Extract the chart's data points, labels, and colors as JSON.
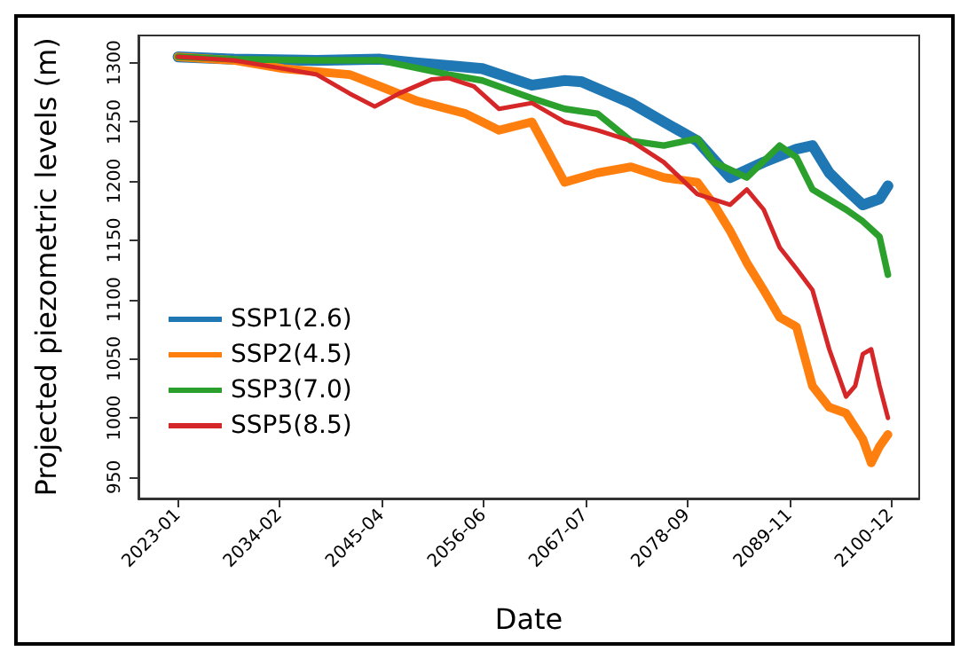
{
  "chart_data": {
    "type": "line",
    "xlabel": "Date",
    "ylabel": "Projected piezometric levels (m)",
    "xlim": [
      "2018-09",
      "2104-01"
    ],
    "xticks": [
      "2023-01",
      "2034-02",
      "2045-04",
      "2056-06",
      "2067-07",
      "2078-09",
      "2089-11",
      "2100-12"
    ],
    "ylim": [
      932,
      1323
    ],
    "yticks": [
      950,
      1000,
      1050,
      1100,
      1150,
      1200,
      1250,
      1300
    ],
    "grid": false,
    "legend": "bottom left",
    "marker": "none",
    "line_style": "solid",
    "series": [
      {
        "name": "SSP1(2.6)",
        "color": "#1f77b4",
        "x": [
          "2023-01",
          "2029-02",
          "2038-03",
          "2045-02",
          "2049-01",
          "2056-04",
          "2061-09",
          "2065-04",
          "2067-02",
          "2072-07",
          "2076-02",
          "2079-10",
          "2083-05",
          "2087-01",
          "2090-08",
          "2092-05",
          "2094-03",
          "2096-01",
          "2097-11",
          "2099-09",
          "2100-08"
        ],
        "values": [
          1305,
          1303,
          1302,
          1303,
          1300,
          1295,
          1281,
          1285,
          1284,
          1266,
          1250,
          1234,
          1203,
          1216,
          1227,
          1230,
          1207,
          1193,
          1180,
          1185,
          1196
        ]
      },
      {
        "name": "SSP2(4.5)",
        "color": "#ff7f0e",
        "x": [
          "2023-01",
          "2029-02",
          "2034-07",
          "2041-10",
          "2045-02",
          "2049-01",
          "2054-06",
          "2058-02",
          "2061-09",
          "2065-04",
          "2068-11",
          "2072-07",
          "2076-02",
          "2079-10",
          "2081-08",
          "2083-05",
          "2085-03",
          "2087-01",
          "2088-10",
          "2090-08",
          "2092-05",
          "2094-03",
          "2096-01",
          "2097-11",
          "2098-10",
          "2099-09",
          "2100-08"
        ],
        "values": [
          1305,
          1302,
          1295,
          1290,
          1280,
          1268,
          1257,
          1243,
          1250,
          1199,
          1207,
          1212,
          1203,
          1199,
          1180,
          1158,
          1131,
          1108,
          1085,
          1077,
          1027,
          1009,
          1004,
          982,
          962,
          976,
          986
        ]
      },
      {
        "name": "SSP3(7.0)",
        "color": "#2ca02c",
        "x": [
          "2023-01",
          "2029-02",
          "2038-03",
          "2045-02",
          "2052-08",
          "2056-04",
          "2061-09",
          "2065-04",
          "2068-11",
          "2072-07",
          "2076-02",
          "2079-10",
          "2081-08",
          "2085-03",
          "2088-10",
          "2090-08",
          "2092-05",
          "2096-01",
          "2097-11",
          "2099-09",
          "2100-08"
        ],
        "values": [
          1305,
          1303,
          1302,
          1302,
          1290,
          1285,
          1270,
          1261,
          1257,
          1234,
          1230,
          1236,
          1216,
          1203,
          1230,
          1220,
          1193,
          1176,
          1166,
          1153,
          1121
        ]
      },
      {
        "name": "SSP5(8.5)",
        "color": "#d62728",
        "x": [
          "2023-01",
          "2029-02",
          "2034-07",
          "2038-03",
          "2041-10",
          "2044-07",
          "2047-03",
          "2050-10",
          "2052-08",
          "2055-05",
          "2058-02",
          "2061-09",
          "2065-04",
          "2068-11",
          "2072-07",
          "2076-02",
          "2079-10",
          "2083-05",
          "2085-03",
          "2087-01",
          "2088-10",
          "2090-08",
          "2092-05",
          "2094-03",
          "2096-01",
          "2097-01",
          "2097-11",
          "2098-10",
          "2099-09",
          "2100-08"
        ],
        "values": [
          1305,
          1302,
          1295,
          1290,
          1274,
          1263,
          1274,
          1286,
          1287,
          1280,
          1261,
          1266,
          1250,
          1243,
          1234,
          1216,
          1189,
          1180,
          1193,
          1176,
          1144,
          1126,
          1108,
          1058,
          1018,
          1027,
          1054,
          1058,
          1027,
          1000
        ]
      }
    ]
  }
}
